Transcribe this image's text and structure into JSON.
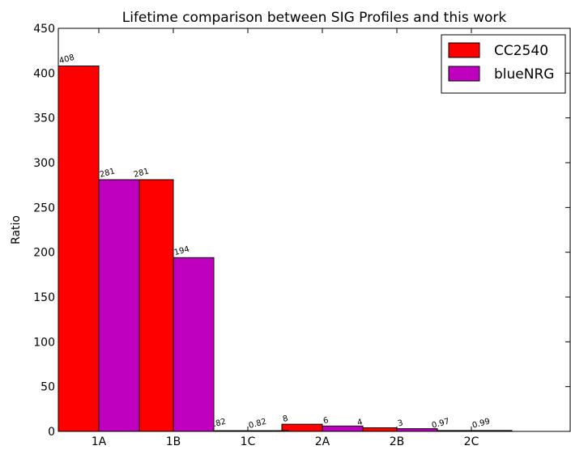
{
  "chart_data": {
    "type": "bar",
    "title": "Lifetime comparison between SIG Profiles and this work",
    "ylabel": "Ratio",
    "categories": [
      "1A",
      "1B",
      "1C",
      "2A",
      "2B",
      "2C"
    ],
    "series": [
      {
        "name": "CC2540",
        "color": "#ff0000",
        "values": [
          408,
          281,
          0.82,
          8,
          4,
          0.97
        ]
      },
      {
        "name": "blueNRG",
        "color": "#bf00bf",
        "values": [
          281,
          194,
          0.82,
          6,
          3,
          0.99
        ]
      }
    ],
    "ylim": [
      0,
      450
    ],
    "yticks": [
      0,
      50,
      100,
      150,
      200,
      250,
      300,
      350,
      400,
      450
    ],
    "legend": "upper right"
  }
}
